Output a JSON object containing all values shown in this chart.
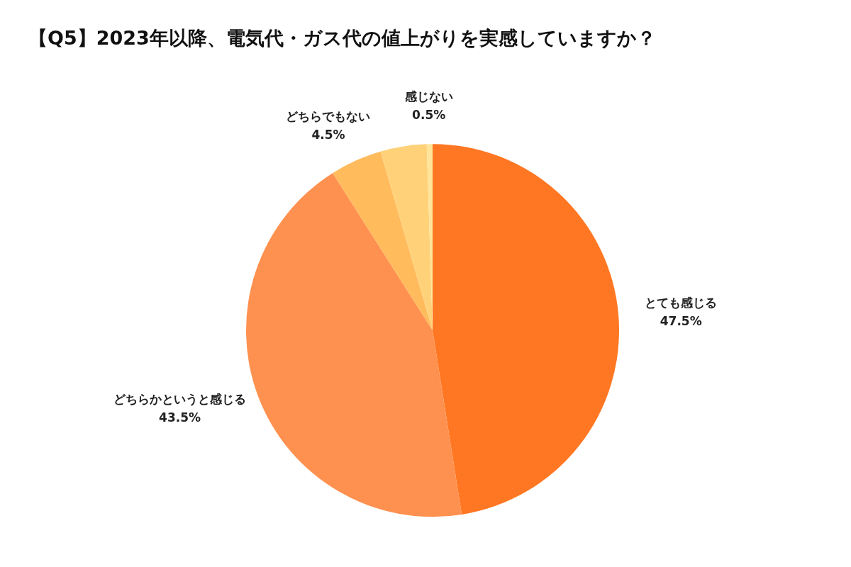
{
  "chart_data": {
    "type": "pie",
    "title": "【Q5】2023年以降、電気代・ガス代の値上がりを実感していますか？",
    "categories": [
      "とても感じる",
      "どちらかというと感じる",
      "どちらでもない",
      null,
      "感じない"
    ],
    "values": [
      47.5,
      43.5,
      4.5,
      4,
      0.5
    ],
    "value_labels": [
      "47.5%",
      "43.5%",
      "4.5%",
      null,
      "0.5%"
    ],
    "colors": [
      "#ff7722",
      "#ff9150",
      "#ffbb5c",
      "#ffd27a",
      "#ffe49a"
    ],
    "legend": false
  }
}
